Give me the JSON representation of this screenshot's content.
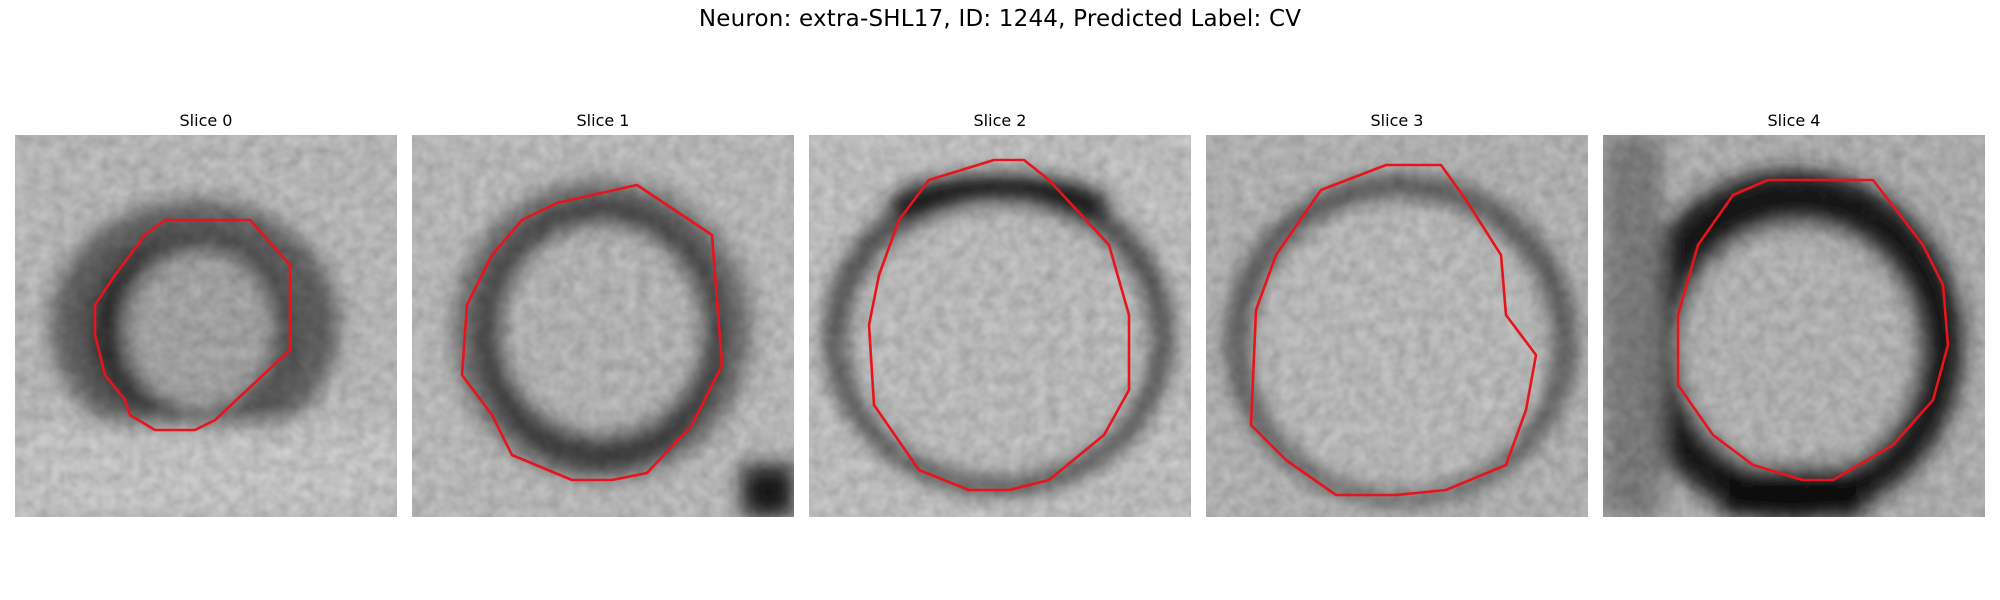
{
  "figure": {
    "title": "Neuron: extra-SHL17, ID: 1244, Predicted Label: CV"
  },
  "panels": [
    {
      "title": "Slice 0"
    },
    {
      "title": "Slice 1"
    },
    {
      "title": "Slice 2"
    },
    {
      "title": "Slice 3"
    },
    {
      "title": "Slice 4"
    }
  ],
  "colors": {
    "contour": "#e8141c"
  }
}
